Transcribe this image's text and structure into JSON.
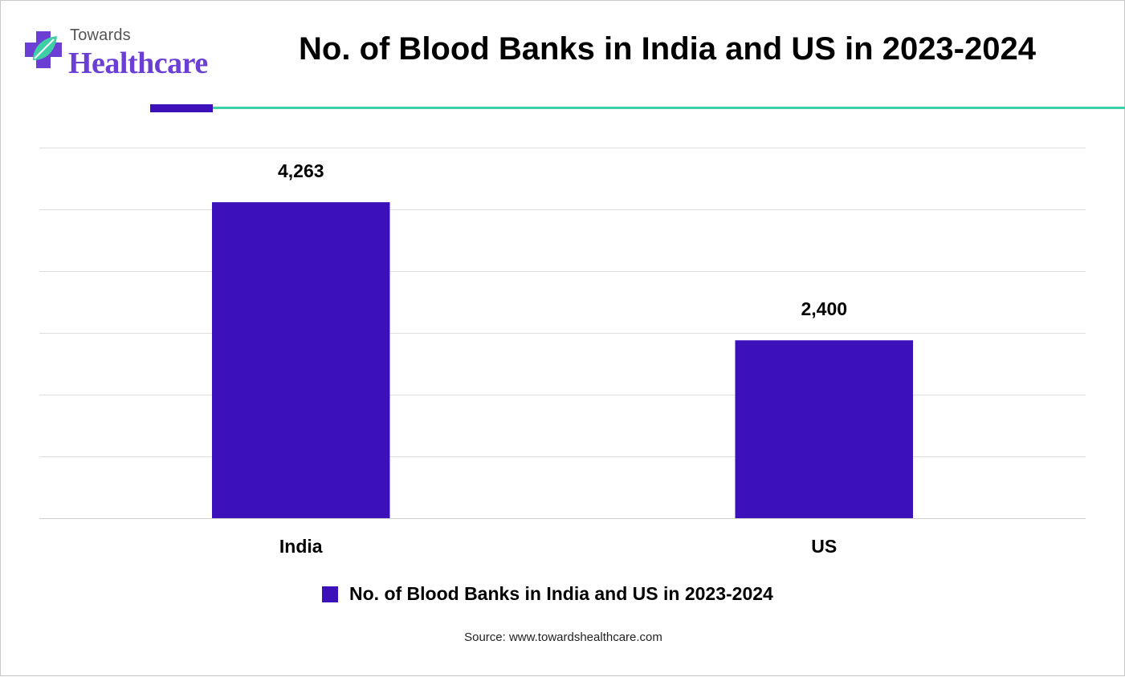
{
  "brand": {
    "line1": "Towards",
    "line2": "Healthcare",
    "icon": "medical-cross-leaf-icon",
    "colors": {
      "purple": "#6b3fd3",
      "teal": "#3ecfa6"
    }
  },
  "header": {
    "title": "No. of Blood Banks in India and US in 2023-2024",
    "accent_color": "#3d11ba",
    "rule_color": "#3ecfa6"
  },
  "chart_data": {
    "type": "bar",
    "categories": [
      "India",
      "US"
    ],
    "series": [
      {
        "name": "No. of Blood Banks in India and US in 2023-2024",
        "values": [
          4263,
          2400
        ],
        "labels": [
          "4,263",
          "2,400"
        ],
        "color": "#3d11ba"
      }
    ],
    "title": "No. of Blood Banks in India and US in 2023-2024",
    "xlabel": "",
    "ylabel": "",
    "ylim": [
      0,
      5000
    ],
    "yticks": [
      0,
      833,
      1667,
      2500,
      3333,
      4167,
      5000
    ],
    "grid": true,
    "legend": "bottom"
  },
  "legend": {
    "label": "No. of Blood Banks in India and US in 2023-2024",
    "color": "#3d11ba"
  },
  "footer": {
    "source": "Source: www.towardshealthcare.com"
  }
}
